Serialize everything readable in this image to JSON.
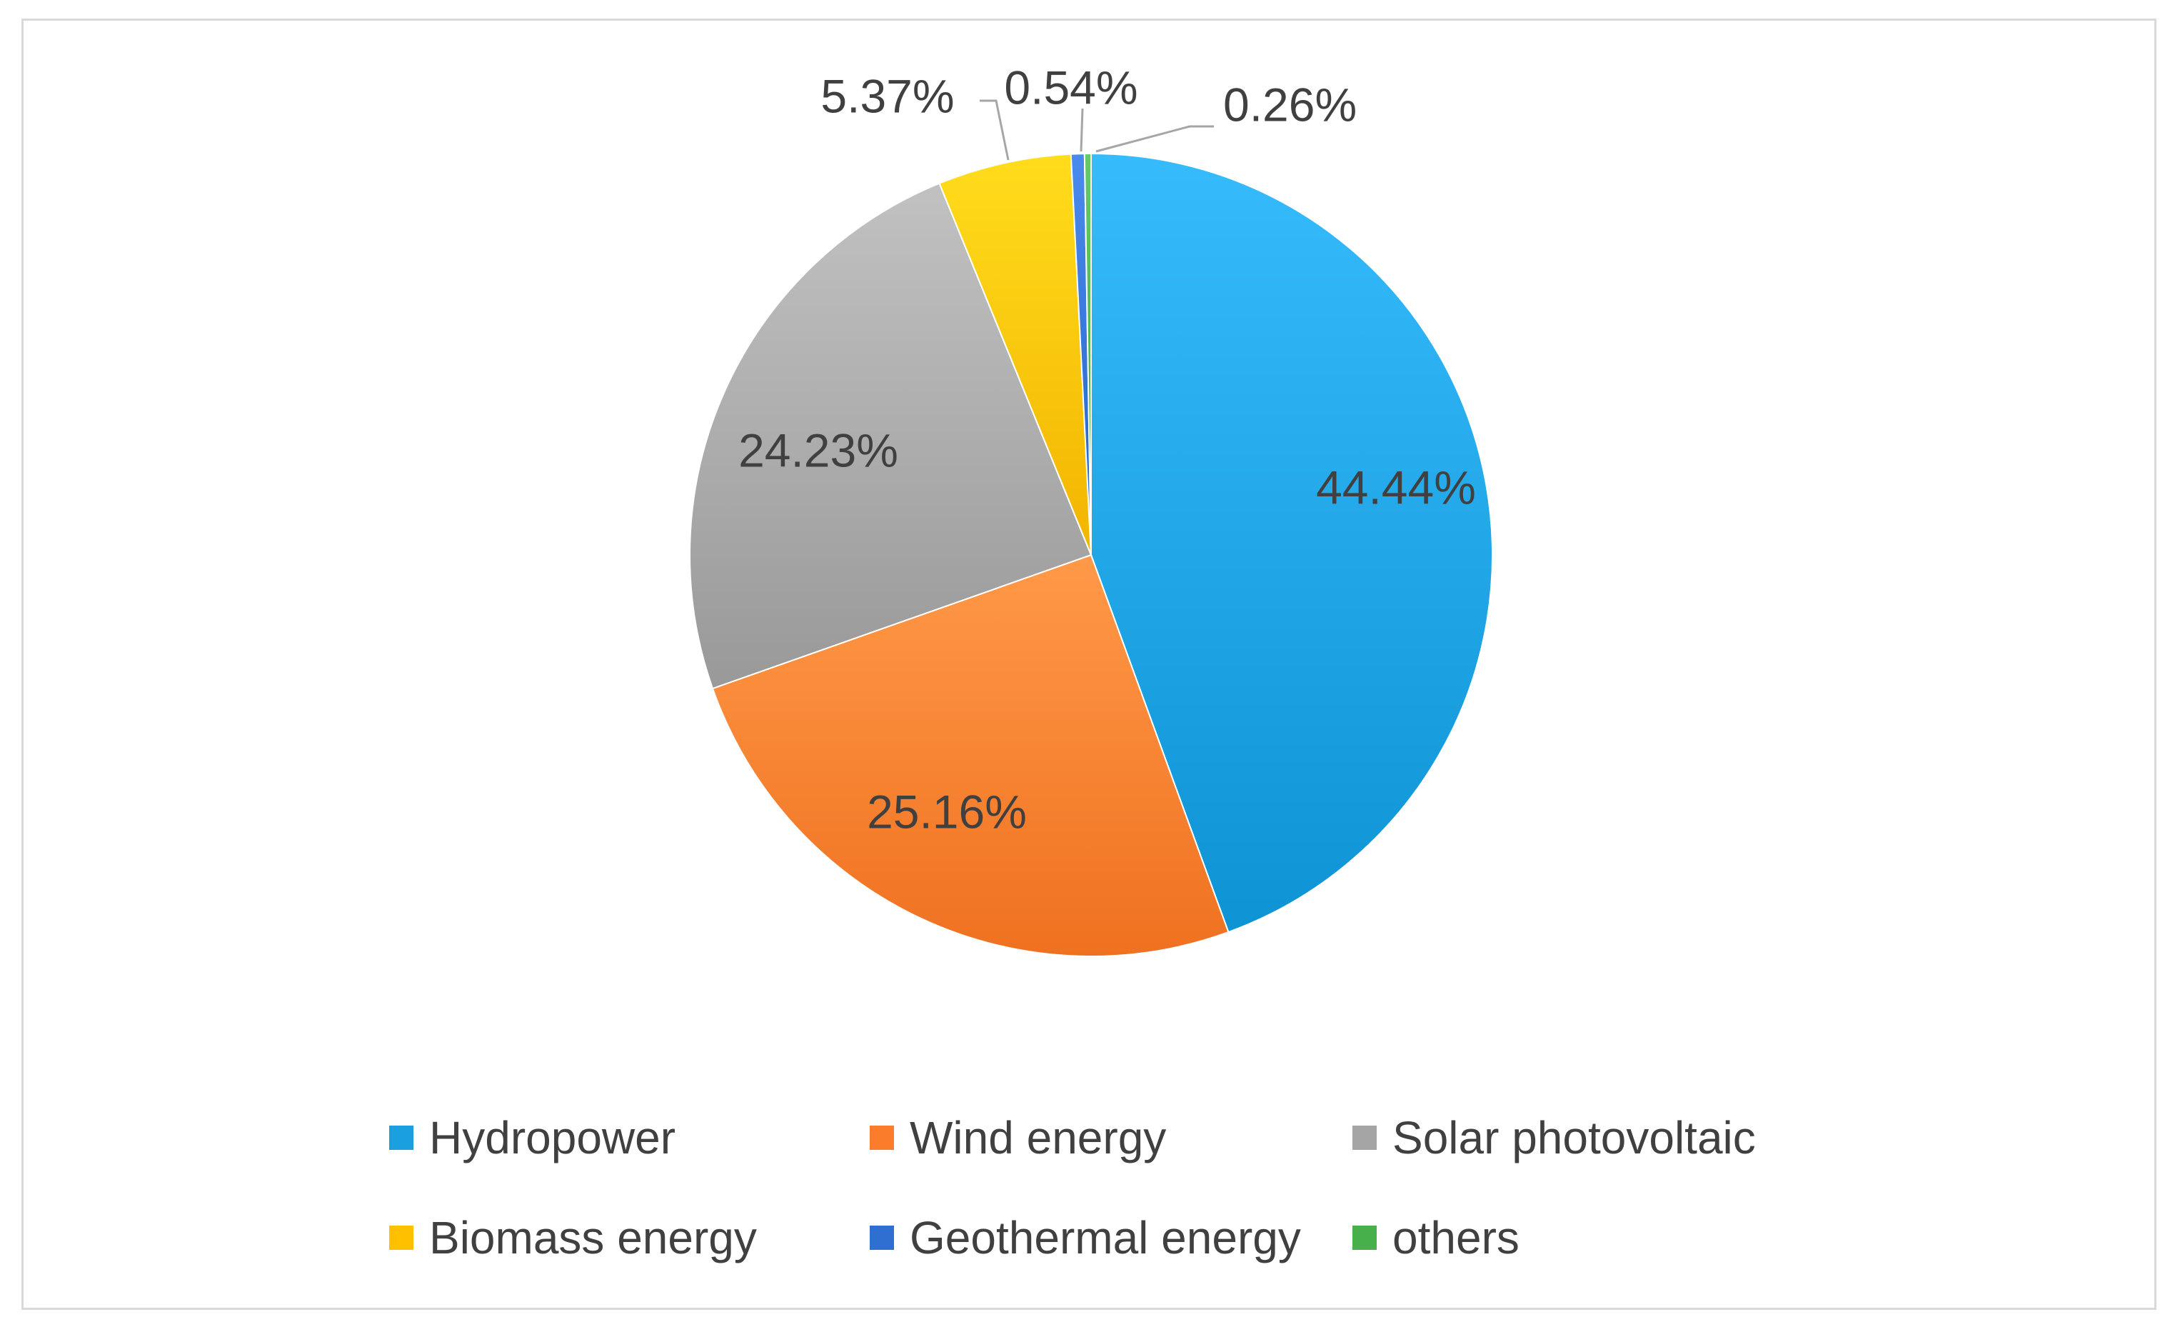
{
  "chart_data": {
    "type": "pie",
    "title": "",
    "slices": [
      {
        "name": "Hydropower",
        "value": 44.44,
        "label": "44.44%",
        "color": "#1a9fe0"
      },
      {
        "name": "Wind energy",
        "value": 25.16,
        "label": "25.16%",
        "color": "#fb7d2c"
      },
      {
        "name": "Solar photovoltaic",
        "value": 24.23,
        "label": "24.23%",
        "color": "#a5a5a5"
      },
      {
        "name": "Biomass energy",
        "value": 5.37,
        "label": "5.37%",
        "color": "#ffc000"
      },
      {
        "name": "Geothermal energy",
        "value": 0.54,
        "label": "0.54%",
        "color": "#2e6fd1"
      },
      {
        "name": "others",
        "value": 0.26,
        "label": "0.26%",
        "color": "#47b04a"
      }
    ],
    "start_angle_deg": 0,
    "direction": "clockwise",
    "legend_position": "bottom"
  },
  "legend": {
    "items": [
      {
        "label": "Hydropower",
        "color": "#1a9fe0"
      },
      {
        "label": "Wind energy",
        "color": "#fb7d2c"
      },
      {
        "label": "Solar photovoltaic",
        "color": "#a5a5a5"
      },
      {
        "label": "Biomass energy",
        "color": "#ffc000"
      },
      {
        "label": "Geothermal energy",
        "color": "#2e6fd1"
      },
      {
        "label": "others",
        "color": "#47b04a"
      }
    ]
  }
}
